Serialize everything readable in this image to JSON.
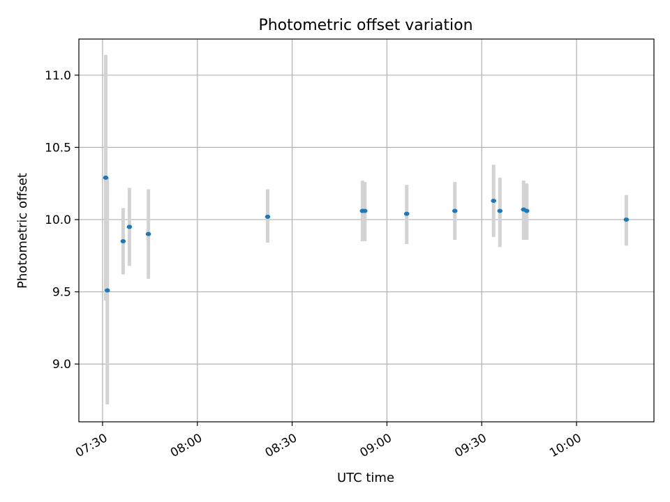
{
  "chart_data": {
    "type": "scatter",
    "title": "Photometric offset variation",
    "xlabel": "UTC time",
    "ylabel": "Photometric offset",
    "x_is_time": true,
    "xlim": [
      "07:22:30",
      "10:24:30"
    ],
    "ylim": [
      8.6,
      11.25
    ],
    "grid": true,
    "x_ticks": [
      "07:30",
      "08:00",
      "08:30",
      "09:00",
      "09:30",
      "10:00"
    ],
    "y_ticks": [
      "9.0",
      "9.5",
      "10.0",
      "10.5",
      "11.0"
    ],
    "point_color": "#1f77b4",
    "errorbar_color": "#d3d3d3",
    "points": [
      {
        "x": "07:31:00",
        "y": 10.29,
        "yerr_low": 9.44,
        "yerr_high": 11.14
      },
      {
        "x": "07:31:30",
        "y": 9.51,
        "yerr_low": 8.72,
        "yerr_high": 10.29
      },
      {
        "x": "07:36:30",
        "y": 9.85,
        "yerr_low": 9.62,
        "yerr_high": 10.08
      },
      {
        "x": "07:38:30",
        "y": 9.95,
        "yerr_low": 9.68,
        "yerr_high": 10.22
      },
      {
        "x": "07:44:30",
        "y": 9.9,
        "yerr_low": 9.59,
        "yerr_high": 10.21
      },
      {
        "x": "08:22:15",
        "y": 10.02,
        "yerr_low": 9.84,
        "yerr_high": 10.21
      },
      {
        "x": "08:52:15",
        "y": 10.06,
        "yerr_low": 9.85,
        "yerr_high": 10.27
      },
      {
        "x": "08:53:00",
        "y": 10.06,
        "yerr_low": 9.85,
        "yerr_high": 10.26
      },
      {
        "x": "09:06:15",
        "y": 10.04,
        "yerr_low": 9.83,
        "yerr_high": 10.24
      },
      {
        "x": "09:21:30",
        "y": 10.06,
        "yerr_low": 9.86,
        "yerr_high": 10.26
      },
      {
        "x": "09:33:45",
        "y": 10.13,
        "yerr_low": 9.88,
        "yerr_high": 10.38
      },
      {
        "x": "09:35:45",
        "y": 10.06,
        "yerr_low": 9.81,
        "yerr_high": 10.29
      },
      {
        "x": "09:43:15",
        "y": 10.07,
        "yerr_low": 9.86,
        "yerr_high": 10.27
      },
      {
        "x": "09:44:15",
        "y": 10.06,
        "yerr_low": 9.86,
        "yerr_high": 10.25
      },
      {
        "x": "10:15:45",
        "y": 10.0,
        "yerr_low": 9.82,
        "yerr_high": 10.17
      }
    ]
  }
}
